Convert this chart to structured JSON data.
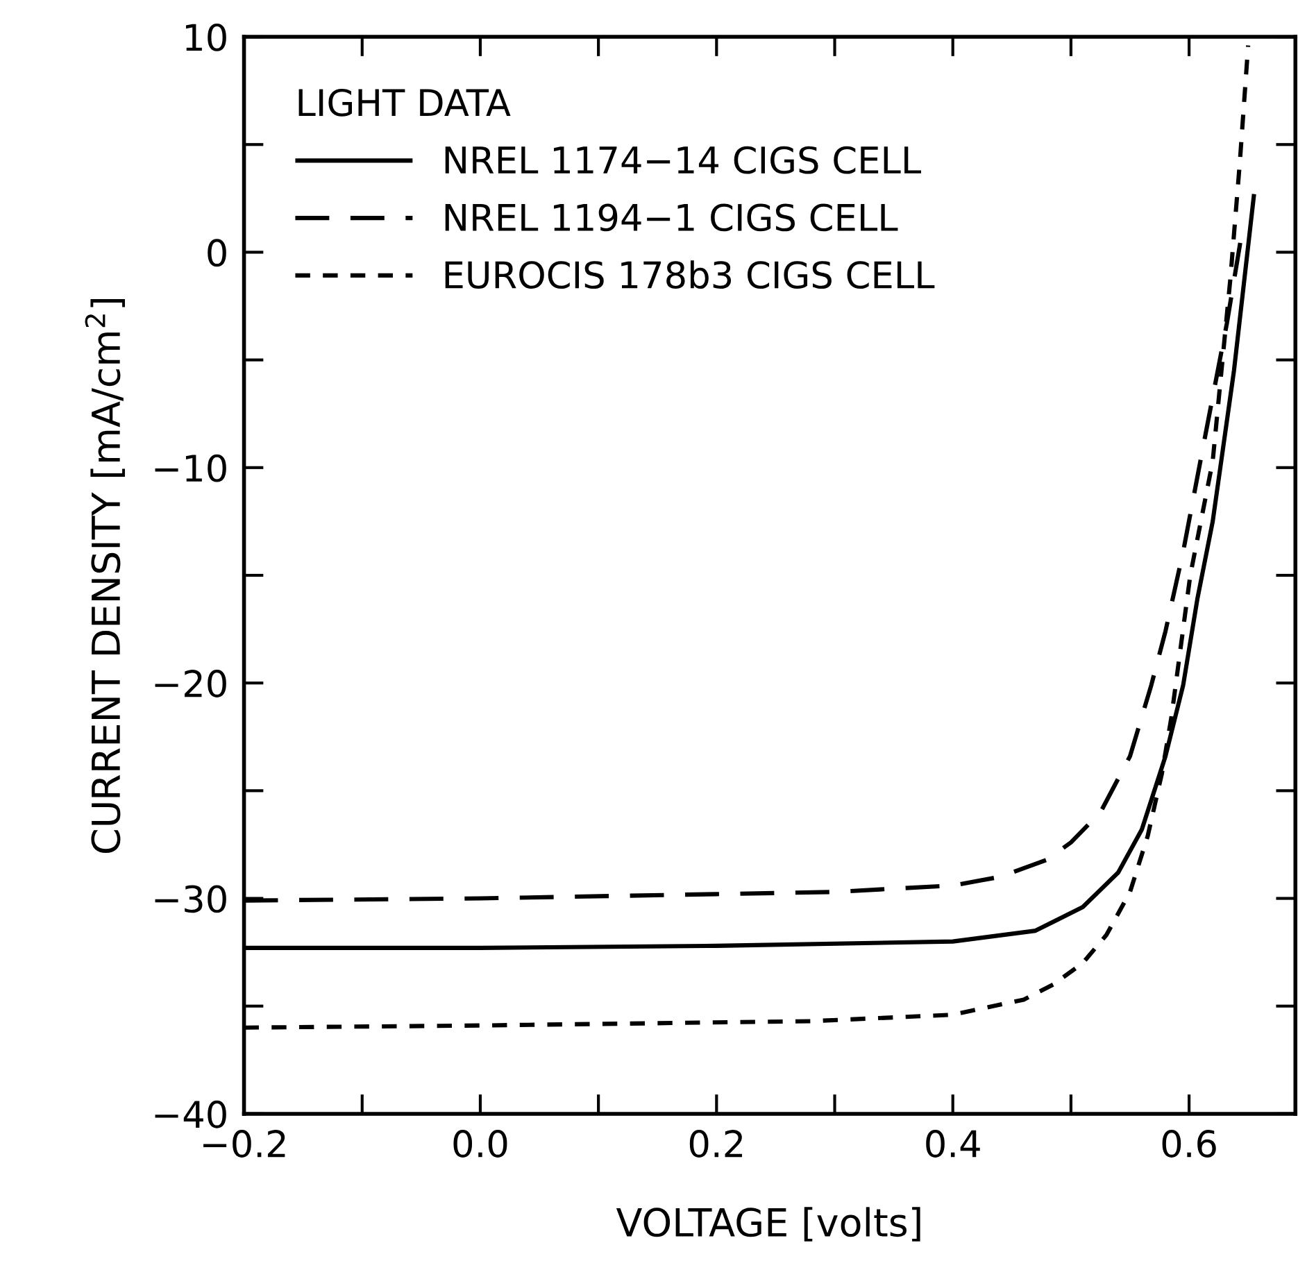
{
  "chart_data": {
    "type": "line",
    "xlabel": "VOLTAGE [volts]",
    "ylabel": "CURRENT DENSITY [mA/cm$^{2}$]",
    "legend_title": "LIGHT DATA",
    "xlim": [
      -0.2,
      0.69
    ],
    "ylim": [
      -40,
      10
    ],
    "xticks": [
      {
        "value": -0.2,
        "label": "−0.2"
      },
      {
        "value": -0.1,
        "label": null
      },
      {
        "value": 0.0,
        "label": "0.0"
      },
      {
        "value": 0.1,
        "label": null
      },
      {
        "value": 0.2,
        "label": "0.2"
      },
      {
        "value": 0.3,
        "label": null
      },
      {
        "value": 0.4,
        "label": "0.4"
      },
      {
        "value": 0.5,
        "label": null
      },
      {
        "value": 0.6,
        "label": "0.6"
      }
    ],
    "yticks": [
      {
        "value": -40,
        "label": "−40"
      },
      {
        "value": -35,
        "label": null
      },
      {
        "value": -30,
        "label": "−30"
      },
      {
        "value": -25,
        "label": null
      },
      {
        "value": -20,
        "label": "−20"
      },
      {
        "value": -15,
        "label": null
      },
      {
        "value": -10,
        "label": "−10"
      },
      {
        "value": -5,
        "label": null
      },
      {
        "value": 0,
        "label": "0"
      },
      {
        "value": 5,
        "label": null
      },
      {
        "value": 10,
        "label": "10"
      }
    ],
    "grid": false,
    "legend": "top left",
    "series": [
      {
        "name": "NREL 1174−14 CIGS CELL",
        "color": "#000000",
        "line_style": "solid",
        "x": [
          -0.2,
          0.0,
          0.2,
          0.4,
          0.47,
          0.51,
          0.54,
          0.56,
          0.58,
          0.595,
          0.607,
          0.62,
          0.638,
          0.655
        ],
        "values": [
          -32.3,
          -32.3,
          -32.2,
          -32.0,
          -31.5,
          -30.4,
          -28.8,
          -26.8,
          -23.4,
          -20.1,
          -16.1,
          -12.5,
          -5.5,
          2.7
        ]
      },
      {
        "name": "NREL 1194−1 CIGS CELL",
        "color": "#000000",
        "line_style": "dashed",
        "x": [
          -0.2,
          0.0,
          0.2,
          0.3,
          0.4,
          0.44,
          0.48,
          0.5,
          0.525,
          0.55,
          0.568,
          0.58,
          0.595,
          0.612,
          0.632,
          0.645
        ],
        "values": [
          -30.1,
          -30.0,
          -29.8,
          -29.7,
          -29.4,
          -29.0,
          -28.2,
          -27.4,
          -26.0,
          -23.4,
          -20.1,
          -17.6,
          -13.9,
          -9.0,
          -3.3,
          1.0
        ]
      },
      {
        "name": "EUROCIS 178b3 CIGS CELL",
        "color": "#000000",
        "line_style": "dotted",
        "x": [
          -0.2,
          0.0,
          0.28,
          0.4,
          0.46,
          0.485,
          0.51,
          0.53,
          0.55,
          0.565,
          0.577,
          0.585,
          0.593,
          0.601,
          0.62,
          0.635,
          0.643,
          0.65
        ],
        "values": [
          -36.0,
          -35.9,
          -35.7,
          -35.4,
          -34.7,
          -34.0,
          -33.0,
          -31.7,
          -29.7,
          -27.1,
          -24.2,
          -21.6,
          -18.3,
          -15.0,
          -9.7,
          -1.2,
          4.2,
          9.6
        ]
      }
    ]
  }
}
